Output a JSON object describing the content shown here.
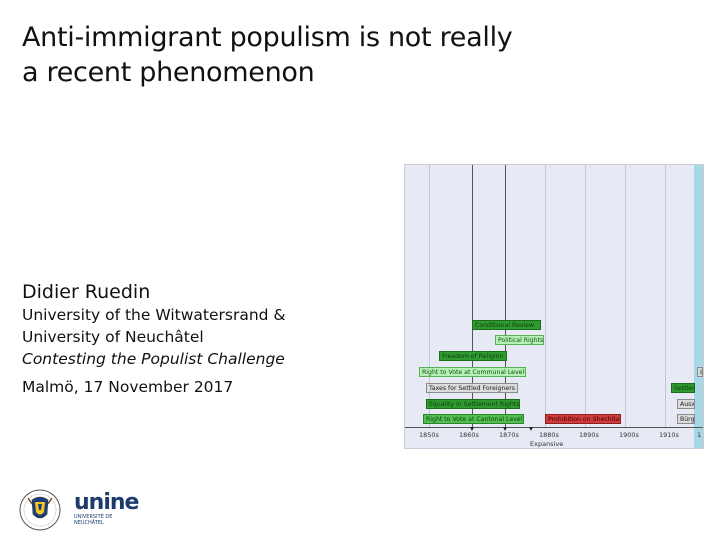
{
  "slide": {
    "title_lines": [
      "Anti-immigrant populism is not really",
      "a recent phenomenon"
    ],
    "author": "Didier Ruedin",
    "affiliation_lines": [
      "University of the Witwatersrand &",
      "University of Neuchâtel"
    ],
    "conference": "Contesting the Populist Challenge",
    "date": "Malmö, 17 November 2017"
  },
  "figure": {
    "bars": [
      {
        "label": "Conditional Review",
        "style": "g-dark"
      },
      {
        "label": "Political Rights",
        "style": "g-light"
      },
      {
        "label": "Freedom of Religion",
        "style": "g-dark"
      },
      {
        "label": "Right to Vote at Communal Level",
        "style": "g-light"
      },
      {
        "label": "Taxes for Settled Foreigners",
        "style": "gray-light"
      },
      {
        "label": "Equality in Settlement Rights",
        "style": "g-dark"
      },
      {
        "label": "Right to Vote at Cantonal Level",
        "style": "g-med"
      },
      {
        "label": "Prohibition on Shechita",
        "style": "red"
      },
      {
        "label": "Settlement",
        "style": "g-dark"
      },
      {
        "label": "Auswe",
        "style": "gray-light"
      },
      {
        "label": "Bürger",
        "style": "gray-light"
      },
      {
        "label": "L",
        "style": "gray-light"
      }
    ],
    "ticks": [
      "1850s",
      "1860s",
      "1870s",
      "1880s",
      "1890s",
      "1900s",
      "1910s",
      "1"
    ],
    "axis_label": "Expansive"
  },
  "logos": {
    "unine_wordmark": "unine",
    "unine_sub_lines": [
      "UNIVERSITÉ DE",
      "NEUCHÂTEL"
    ],
    "uwits_icon": "university-of-the-witwatersrand-crest"
  },
  "colors": {
    "accent_green": "#2f9a2f",
    "accent_red": "#d23c3c",
    "timeline_bg": "#e7e9f4",
    "blue_band": "#a8d8e6"
  }
}
